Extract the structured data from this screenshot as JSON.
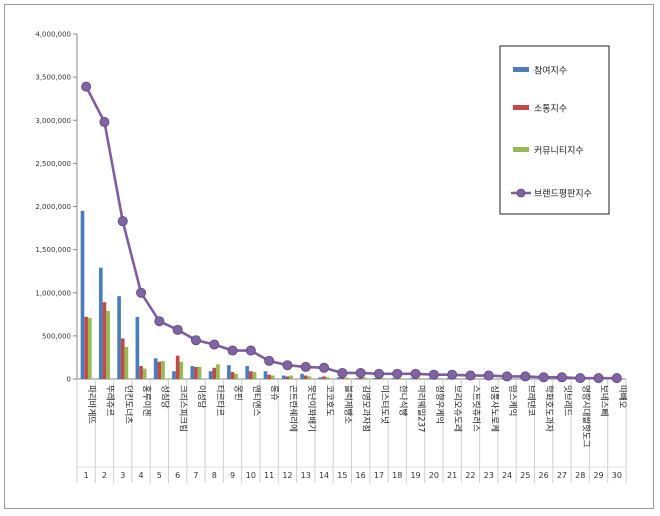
{
  "chart_data": {
    "type": "bar",
    "ylim": [
      0,
      4000000
    ],
    "yticks": [
      "0",
      "500,000",
      "1,000,000",
      "1,500,000",
      "2,000,000",
      "2,500,000",
      "3,000,000",
      "3,500,000",
      "4,000,000"
    ],
    "grid": false,
    "legend_position": "top-right",
    "categories": [
      "파리바게뜨",
      "뚜레쥬르",
      "던킨도너츠",
      "홍루이젠",
      "성심당",
      "크리스피크림",
      "이성당",
      "타르타르",
      "몽핀",
      "앤티앤스",
      "롱슈",
      "곤트란쉐리에",
      "못난이꽈배기",
      "코코호도",
      "블럭제빵소",
      "김영모과자점",
      "미스터도넛",
      "한나식빵",
      "마리웨일237",
      "정향우케익",
      "브리오슈도레",
      "스트릿츄러스",
      "심퉁사노로케",
      "맘스케익",
      "브레댄코",
      "학화호도과자",
      "잇브레드",
      "명랑시대쌀핫도그",
      "보네스뻬",
      "따빼오"
    ],
    "ranks": [
      "1",
      "2",
      "3",
      "4",
      "5",
      "6",
      "7",
      "8",
      "9",
      "10",
      "11",
      "12",
      "13",
      "14",
      "15",
      "16",
      "17",
      "18",
      "19",
      "20",
      "21",
      "22",
      "23",
      "24",
      "25",
      "26",
      "27",
      "28",
      "29",
      "30"
    ],
    "series": [
      {
        "name": "참여지수",
        "type": "bar",
        "color": "#4a7ebb",
        "values": [
          1950000,
          1290000,
          960000,
          720000,
          240000,
          90000,
          150000,
          90000,
          160000,
          150000,
          90000,
          40000,
          60000,
          20000,
          20000,
          10000,
          12000,
          10000,
          10000,
          10000,
          10000,
          10000,
          8000,
          8000,
          8000,
          8000,
          6000,
          6000,
          5000,
          4000
        ]
      },
      {
        "name": "소통지수",
        "type": "bar",
        "color": "#be4b48",
        "values": [
          720000,
          890000,
          470000,
          150000,
          200000,
          270000,
          140000,
          130000,
          80000,
          90000,
          50000,
          30000,
          40000,
          30000,
          20000,
          20000,
          10000,
          10000,
          10000,
          10000,
          10000,
          8000,
          8000,
          8000,
          6000,
          6000,
          6000,
          5000,
          5000,
          4000
        ]
      },
      {
        "name": "커뮤니티지수",
        "type": "bar",
        "color": "#98b954",
        "values": [
          710000,
          790000,
          370000,
          120000,
          210000,
          200000,
          140000,
          170000,
          60000,
          80000,
          40000,
          40000,
          30000,
          20000,
          20000,
          20000,
          10000,
          10000,
          10000,
          10000,
          10000,
          8000,
          8000,
          8000,
          6000,
          6000,
          6000,
          5000,
          5000,
          4000
        ]
      },
      {
        "name": "브랜드평판지수",
        "type": "line",
        "color": "#7d5fa0",
        "values": [
          3390000,
          2980000,
          1830000,
          1000000,
          670000,
          570000,
          450000,
          400000,
          330000,
          330000,
          210000,
          160000,
          140000,
          130000,
          70000,
          70000,
          60000,
          60000,
          60000,
          50000,
          50000,
          40000,
          40000,
          30000,
          30000,
          20000,
          20000,
          10000,
          10000,
          10000
        ]
      }
    ]
  }
}
